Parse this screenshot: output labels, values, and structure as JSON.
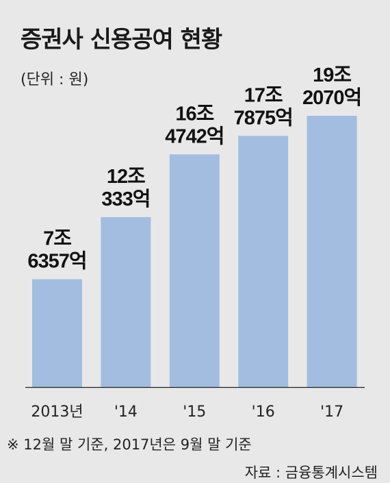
{
  "chart_data": {
    "type": "bar",
    "title": "증권사 신용공여 현황",
    "unit_label": "(단위 : 원)",
    "categories": [
      "2013년",
      "'14",
      "'15",
      "'16",
      "'17"
    ],
    "values": [
      7.6357,
      12.0333,
      16.4742,
      17.7875,
      19.207
    ],
    "value_labels": [
      [
        "7조",
        "6357억"
      ],
      [
        "12조",
        "333억"
      ],
      [
        "16조",
        "4742억"
      ],
      [
        "17조",
        "7875억"
      ],
      [
        "19조",
        "2070억"
      ]
    ],
    "value_unit": "조 원",
    "ylim": [
      0,
      21
    ],
    "grid": false,
    "bar_color": "#a3bde0",
    "background": "#e8e8e8"
  },
  "footnote": "※  12월 말 기준, 2017년은 9월 말 기준",
  "source": "자료 : 금융통계시스템"
}
